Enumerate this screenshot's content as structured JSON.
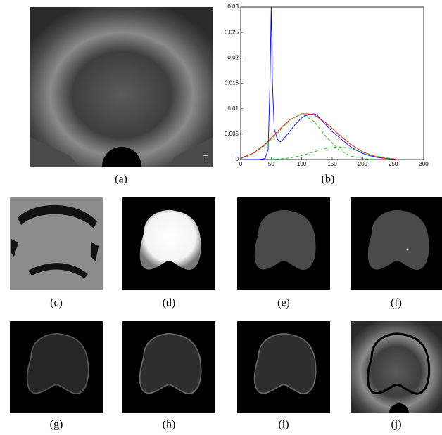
{
  "captions": [
    "(a)",
    "(b)",
    "(c)",
    "(d)",
    "(e)",
    "(f)",
    "(g)",
    "(h)",
    "(i)",
    "(j)"
  ],
  "chart_data": {
    "type": "line",
    "xlim": [
      0,
      300
    ],
    "xticks": [
      0,
      50,
      100,
      150,
      200,
      250,
      300
    ],
    "ylim": [
      0,
      0.03
    ],
    "yticks": [
      0,
      0.005,
      0.01,
      0.015,
      0.02,
      0.025,
      0.03
    ],
    "series": [
      {
        "color": "#0000ff",
        "dash": false,
        "x": [
          0,
          30,
          40,
          45,
          48,
          50,
          52,
          55,
          60,
          65,
          70,
          80,
          90,
          100,
          110,
          120,
          125,
          130,
          140,
          150,
          160,
          170,
          180,
          190,
          200,
          210,
          220,
          230,
          240,
          250,
          255
        ],
        "values": [
          0,
          0,
          0.0002,
          0.002,
          0.015,
          0.03,
          0.015,
          0.006,
          0.004,
          0.0035,
          0.004,
          0.0055,
          0.007,
          0.0082,
          0.0088,
          0.009,
          0.0088,
          0.008,
          0.0068,
          0.0055,
          0.0045,
          0.0035,
          0.0025,
          0.0018,
          0.0012,
          0.0008,
          0.0005,
          0.0003,
          0.0002,
          0.0001,
          0
        ]
      },
      {
        "color": "#ff0000",
        "dash": false,
        "x": [
          0,
          20,
          40,
          60,
          80,
          100,
          110,
          120,
          140,
          160,
          180,
          200,
          220,
          240,
          255
        ],
        "values": [
          0.0003,
          0.0012,
          0.003,
          0.0055,
          0.0078,
          0.009,
          0.009,
          0.0088,
          0.0072,
          0.005,
          0.003,
          0.0015,
          0.0006,
          0.0002,
          0.0001
        ]
      },
      {
        "color": "#00c000",
        "dash": true,
        "x": [
          0,
          20,
          40,
          60,
          80,
          100,
          120,
          140,
          160,
          180,
          200,
          220
        ],
        "values": [
          0.0002,
          0.001,
          0.0028,
          0.0052,
          0.0077,
          0.009,
          0.0075,
          0.0045,
          0.002,
          0.0007,
          0.0002,
          0
        ]
      },
      {
        "color": "#00c000",
        "dash": true,
        "x": [
          50,
          80,
          100,
          120,
          140,
          160,
          180,
          200,
          220,
          240,
          255
        ],
        "values": [
          0,
          0.0003,
          0.0008,
          0.0015,
          0.0022,
          0.0025,
          0.0022,
          0.0014,
          0.0007,
          0.0003,
          0.0001
        ]
      }
    ]
  }
}
